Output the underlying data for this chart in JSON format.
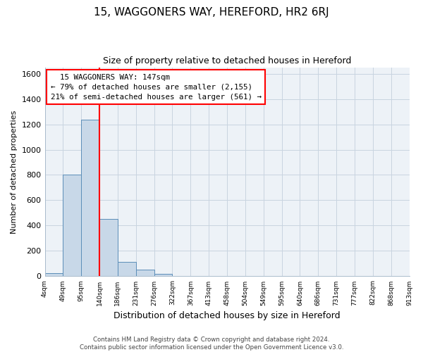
{
  "title": "15, WAGGONERS WAY, HEREFORD, HR2 6RJ",
  "subtitle": "Size of property relative to detached houses in Hereford",
  "xlabel": "Distribution of detached houses by size in Hereford",
  "ylabel": "Number of detached properties",
  "bin_labels": [
    "4sqm",
    "49sqm",
    "95sqm",
    "140sqm",
    "186sqm",
    "231sqm",
    "276sqm",
    "322sqm",
    "367sqm",
    "413sqm",
    "458sqm",
    "504sqm",
    "549sqm",
    "595sqm",
    "640sqm",
    "686sqm",
    "731sqm",
    "777sqm",
    "822sqm",
    "868sqm",
    "913sqm"
  ],
  "bar_values": [
    22,
    800,
    1235,
    455,
    115,
    55,
    20,
    0,
    0,
    0,
    0,
    0,
    0,
    0,
    0,
    0,
    0,
    0,
    0,
    0
  ],
  "bar_color": "#c8d8e8",
  "bar_edge_color": "#5b8db8",
  "property_line_x": 3.0,
  "annotation_text": "  15 WAGGONERS WAY: 147sqm  \n← 79% of detached houses are smaller (2,155)\n21% of semi-detached houses are larger (561) →",
  "annotation_box_color": "white",
  "annotation_box_edge_color": "red",
  "red_line_color": "red",
  "ylim": [
    0,
    1650
  ],
  "yticks": [
    0,
    200,
    400,
    600,
    800,
    1000,
    1200,
    1400,
    1600
  ],
  "grid_color": "#c8d4e0",
  "background_color": "#edf2f7",
  "footer_text": "Contains HM Land Registry data © Crown copyright and database right 2024.\nContains public sector information licensed under the Open Government Licence v3.0.",
  "n_bins": 20,
  "title_fontsize": 11,
  "subtitle_fontsize": 9,
  "ylabel_fontsize": 8,
  "xlabel_fontsize": 9,
  "annot_fontsize": 7.8
}
